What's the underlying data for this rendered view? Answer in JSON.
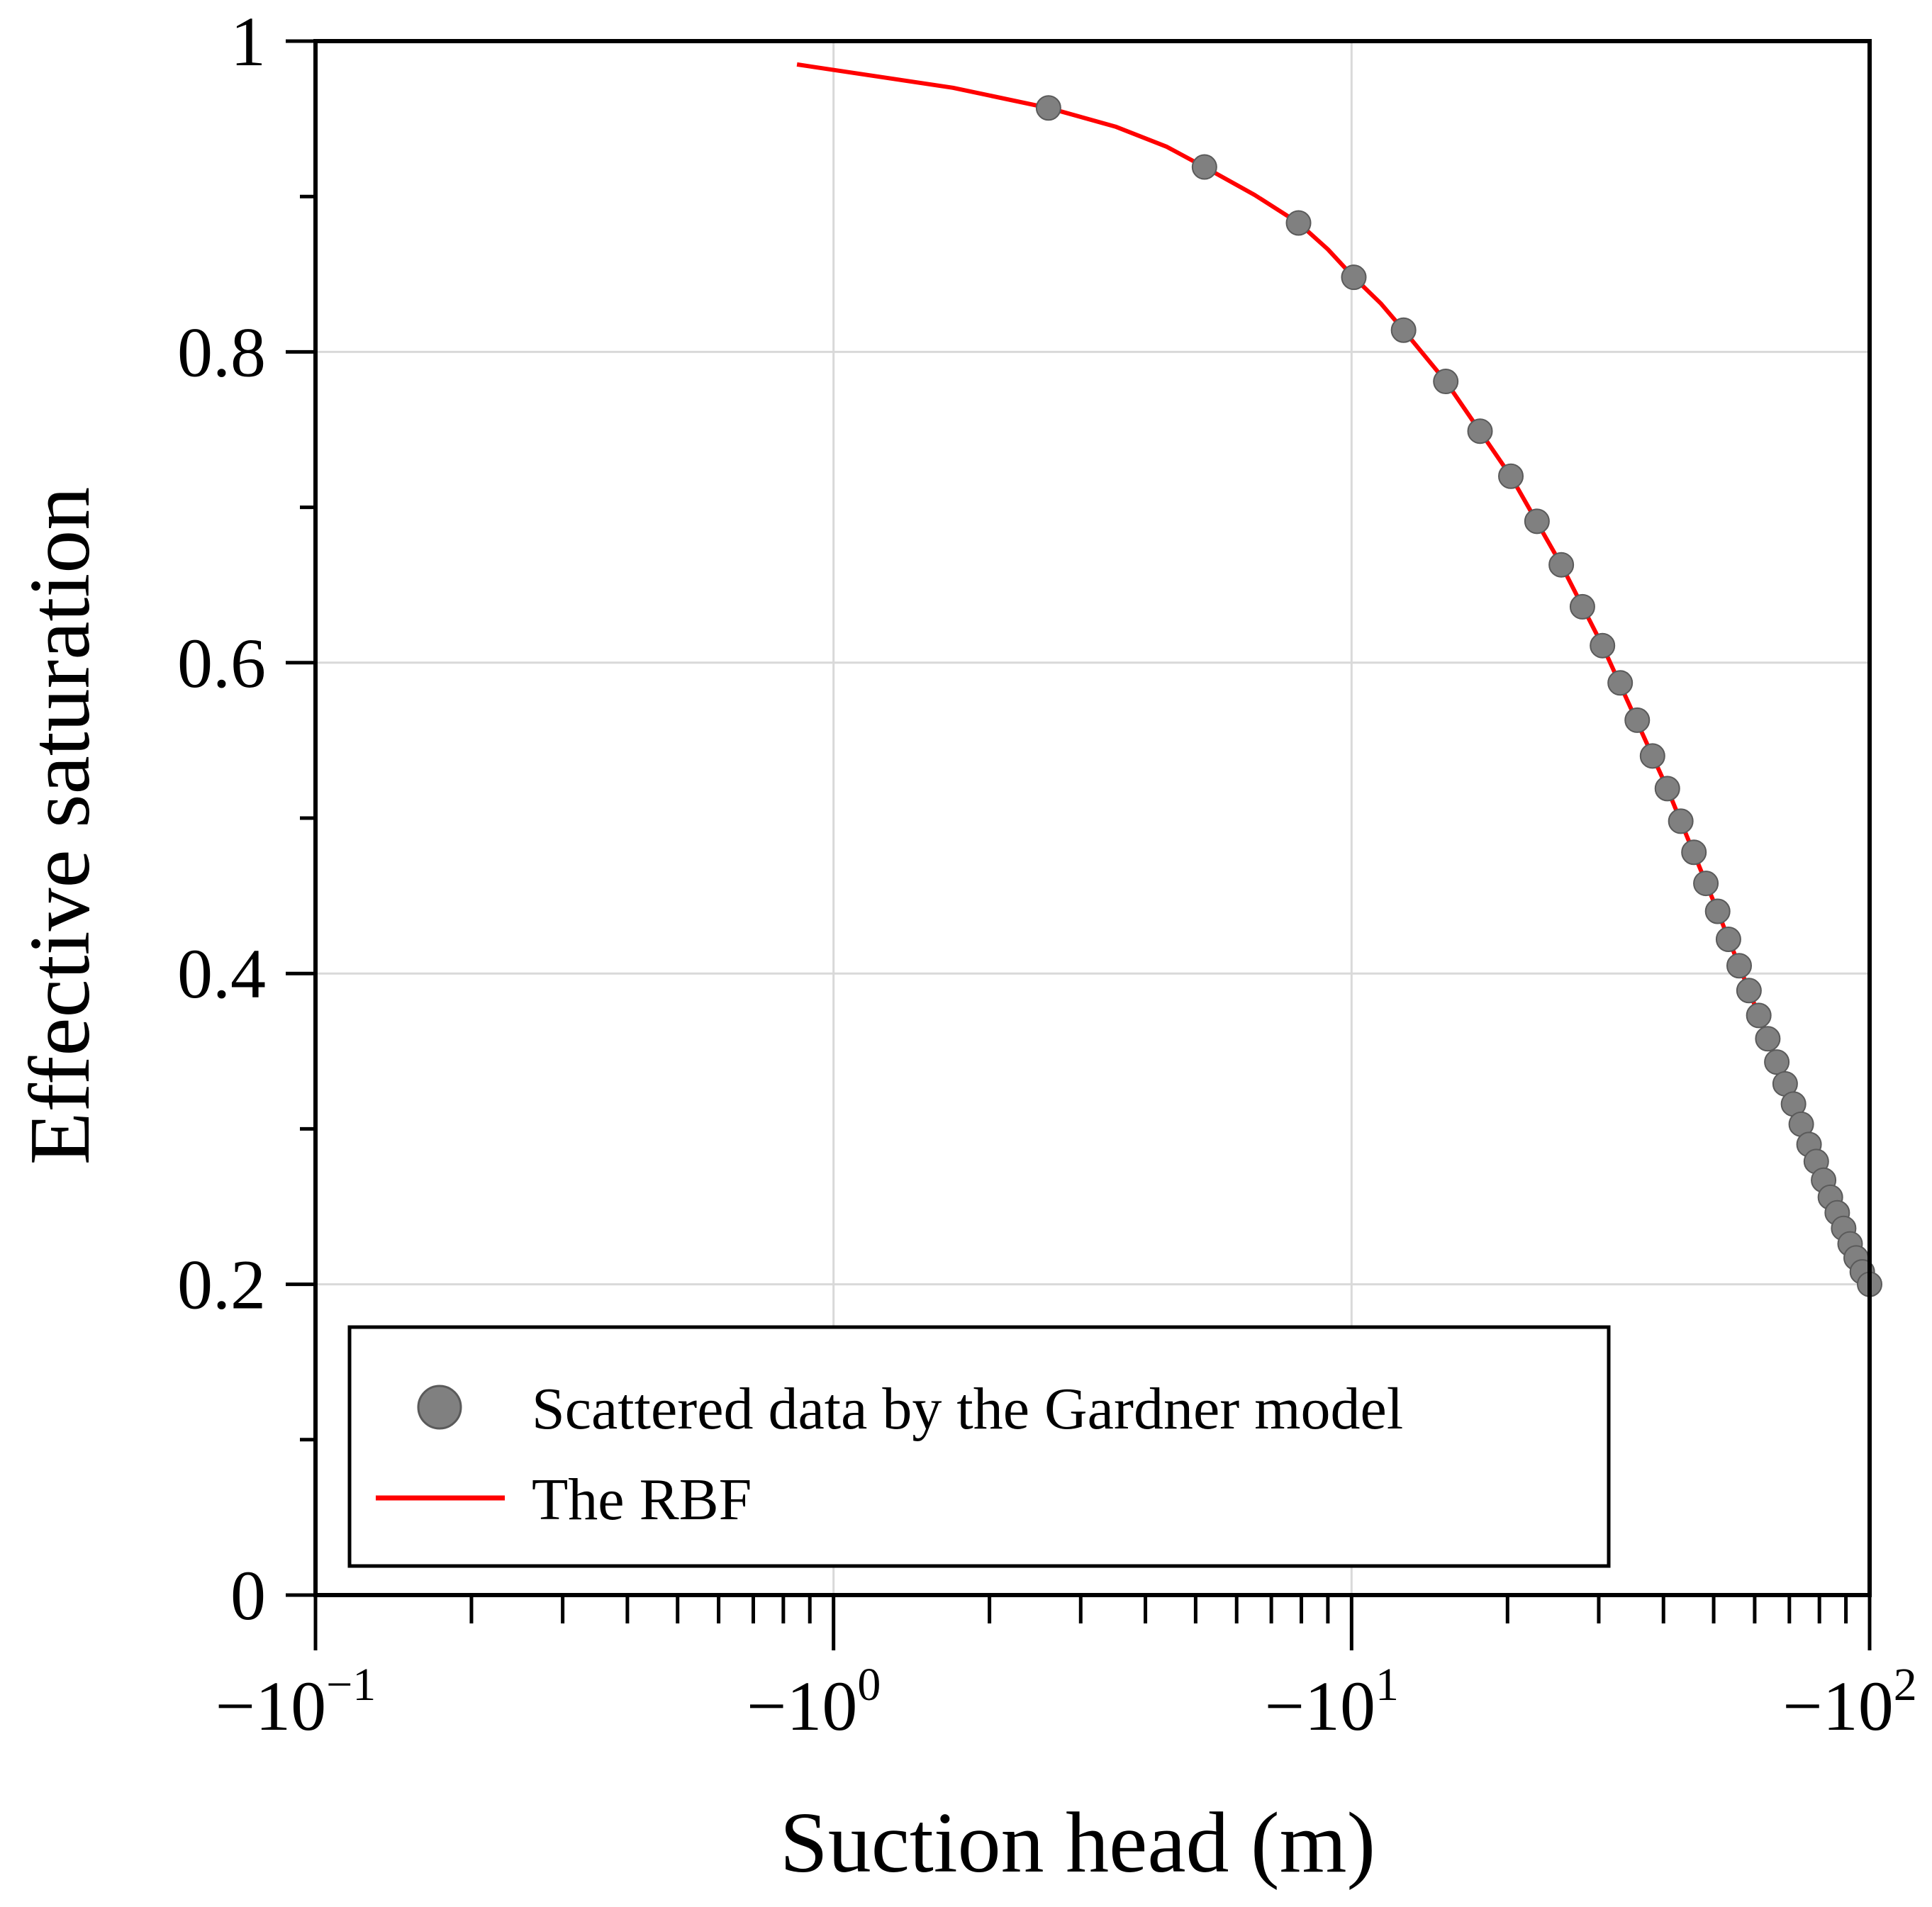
{
  "chart_data": {
    "type": "scatter",
    "xlabel": "Suction head (m)",
    "ylabel": "Effective saturation",
    "x_scale": "negative-log",
    "xlim": [
      -0.1,
      -100
    ],
    "ylim": [
      0,
      1
    ],
    "grid": true,
    "legend_position": "bottom-left",
    "x_tick_labels": [
      {
        "value": -0.1,
        "base": "−10",
        "exp": "−1"
      },
      {
        "value": -1,
        "base": "−10",
        "exp": "0"
      },
      {
        "value": -10,
        "base": "−10",
        "exp": "1"
      },
      {
        "value": -100,
        "base": "−10",
        "exp": "2"
      }
    ],
    "y_tick_labels": [
      {
        "value": 0,
        "label": "0"
      },
      {
        "value": 0.2,
        "label": "0.2"
      },
      {
        "value": 0.4,
        "label": "0.4"
      },
      {
        "value": 0.6,
        "label": "0.6"
      },
      {
        "value": 0.8,
        "label": "0.8"
      },
      {
        "value": 1,
        "label": "1"
      }
    ],
    "series": [
      {
        "name": "Scattered data by the Gardner model",
        "kind": "scatter",
        "color": "#808080",
        "x": [
          -2.6,
          -5.2,
          -7.9,
          -10.1,
          -12.6,
          -15.2,
          -17.7,
          -20.3,
          -22.8,
          -25.4,
          -27.9,
          -30.5,
          -33.0,
          -35.6,
          -38.1,
          -40.7,
          -43.2,
          -45.8,
          -48.3,
          -50.9,
          -53.4,
          -56.0,
          -58.5,
          -61.1,
          -63.6,
          -66.2,
          -68.7,
          -71.3,
          -73.8,
          -76.4,
          -78.9,
          -81.5,
          -84.0,
          -86.6,
          -89.1,
          -91.7,
          -94.2,
          -96.8,
          -100.0
        ],
        "y": [
          0.957,
          0.919,
          0.883,
          0.848,
          0.814,
          0.781,
          0.749,
          0.72,
          0.691,
          0.663,
          0.636,
          0.611,
          0.587,
          0.563,
          0.54,
          0.519,
          0.498,
          0.478,
          0.458,
          0.44,
          0.422,
          0.405,
          0.389,
          0.373,
          0.358,
          0.343,
          0.329,
          0.316,
          0.303,
          0.29,
          0.279,
          0.267,
          0.256,
          0.246,
          0.236,
          0.226,
          0.217,
          0.208,
          0.2
        ]
      },
      {
        "name": "The RBF",
        "kind": "line",
        "color": "#ff0000",
        "x": [
          -0.85,
          -1.7,
          -2.6,
          -3.5,
          -4.4,
          -5.2,
          -6.5,
          -7.9,
          -9.0,
          -10.1,
          -11.4,
          -12.6,
          -15.2,
          -20.3,
          -25.4,
          -30.5,
          -40.7,
          -50.9,
          -61.1,
          -71.3,
          -81.5,
          -91.7,
          -100.0
        ],
        "y": [
          0.985,
          0.97,
          0.957,
          0.945,
          0.932,
          0.919,
          0.901,
          0.883,
          0.866,
          0.848,
          0.831,
          0.814,
          0.781,
          0.72,
          0.663,
          0.611,
          0.519,
          0.44,
          0.373,
          0.316,
          0.267,
          0.226,
          0.2
        ]
      }
    ]
  }
}
